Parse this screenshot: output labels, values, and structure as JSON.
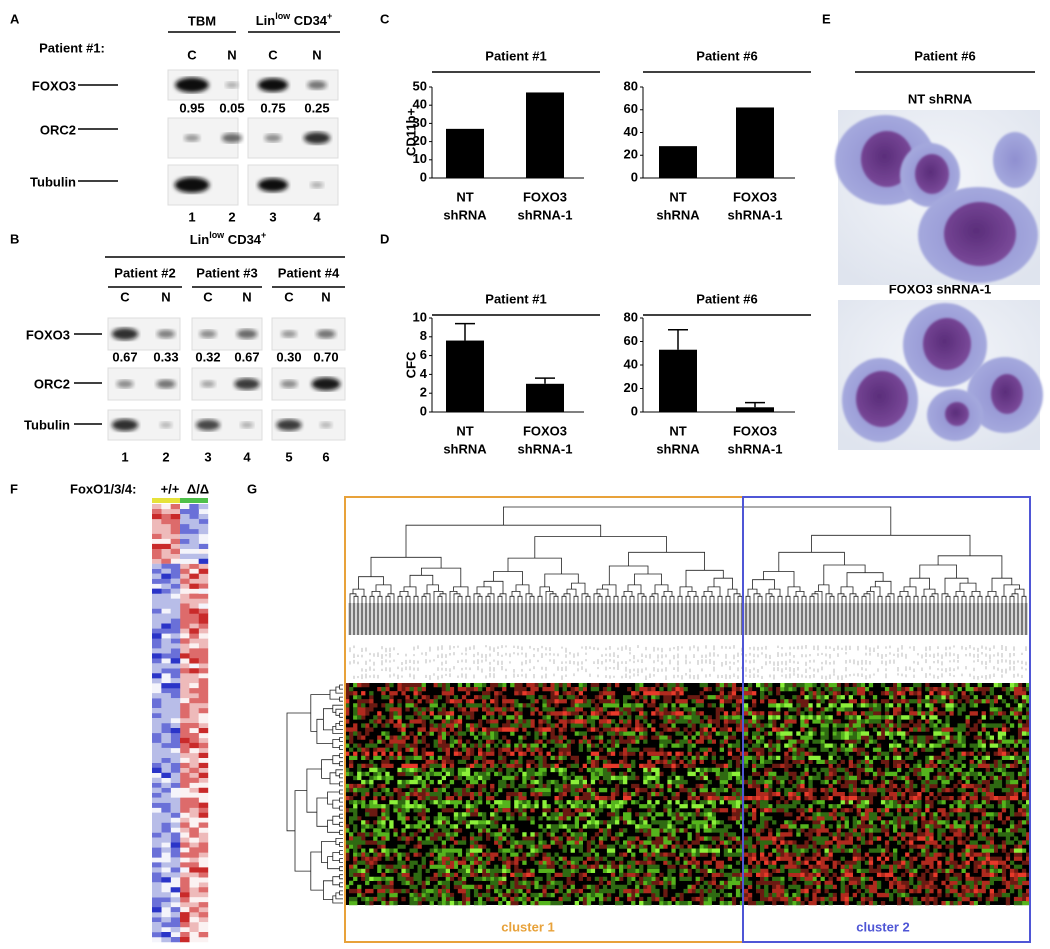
{
  "panel_labels": [
    "A",
    "B",
    "C",
    "D",
    "E",
    "F",
    "G"
  ],
  "panel_a": {
    "header_tbm": "TBM",
    "header_lin": [
      "Lin",
      "low",
      " CD34",
      "+"
    ],
    "patient": "Patient #1:",
    "lanes": [
      "C",
      "N",
      "C",
      "N"
    ],
    "rows": [
      "FOXO3",
      "ORC2",
      "Tubulin"
    ],
    "quant": [
      "0.95",
      "0.05",
      "0.75",
      "0.25"
    ],
    "lane_numbers": [
      "1",
      "2",
      "3",
      "4"
    ]
  },
  "panel_b": {
    "header_lin": [
      "Lin",
      "low",
      " CD34",
      "+"
    ],
    "patients": [
      "Patient #2",
      "Patient #3",
      "Patient #4"
    ],
    "lanes": [
      "C",
      "N",
      "C",
      "N",
      "C",
      "N"
    ],
    "rows": [
      "FOXO3",
      "ORC2",
      "Tubulin"
    ],
    "quant": [
      "0.67",
      "0.33",
      "0.32",
      "0.67",
      "0.30",
      "0.70"
    ],
    "lane_numbers": [
      "1",
      "2",
      "3",
      "4",
      "5",
      "6"
    ]
  },
  "chart_data": [
    {
      "type": "bar",
      "title": "Patient #1",
      "ylabel": "CD11b+",
      "categories": [
        [
          "NT",
          "shRNA"
        ],
        [
          "FOXO3",
          "shRNA-1"
        ]
      ],
      "values": [
        27,
        47
      ],
      "color": "#000000",
      "ylim": [
        0,
        50
      ],
      "yticks": [
        0,
        10,
        20,
        30,
        40,
        50
      ]
    },
    {
      "type": "bar",
      "title": "Patient #6",
      "categories": [
        [
          "NT",
          "shRNA"
        ],
        [
          "FOXO3",
          "shRNA-1"
        ]
      ],
      "values": [
        28,
        62
      ],
      "color": "#000000",
      "ylim": [
        0,
        80
      ],
      "yticks": [
        0,
        20,
        40,
        60,
        80
      ]
    },
    {
      "type": "bar",
      "title": "Patient #1",
      "ylabel": "CFC",
      "categories": [
        [
          "NT",
          "shRNA"
        ],
        [
          "FOXO3",
          "shRNA-1"
        ]
      ],
      "values": [
        7.6,
        3.0
      ],
      "errors": [
        1.8,
        0.6
      ],
      "color": "#000000",
      "ylim": [
        0,
        10
      ],
      "yticks": [
        0,
        2,
        4,
        6,
        8,
        10
      ]
    },
    {
      "type": "bar",
      "title": "Patient #6",
      "categories": [
        [
          "NT",
          "shRNA"
        ],
        [
          "FOXO3",
          "shRNA-1"
        ]
      ],
      "values": [
        53,
        4
      ],
      "errors": [
        17,
        4
      ],
      "color": "#000000",
      "ylim": [
        0,
        80
      ],
      "yticks": [
        0,
        20,
        40,
        60,
        80
      ]
    }
  ],
  "panel_e": {
    "title": "Patient #6",
    "images": [
      "NT shRNA",
      "FOXO3 shRNA-1"
    ]
  },
  "panel_f": {
    "label": "FoxO1/3/4:",
    "genotypes": [
      "+/+",
      "Δ/Δ"
    ]
  },
  "panel_g": {
    "clusters": [
      "cluster 1",
      "cluster 2"
    ]
  }
}
